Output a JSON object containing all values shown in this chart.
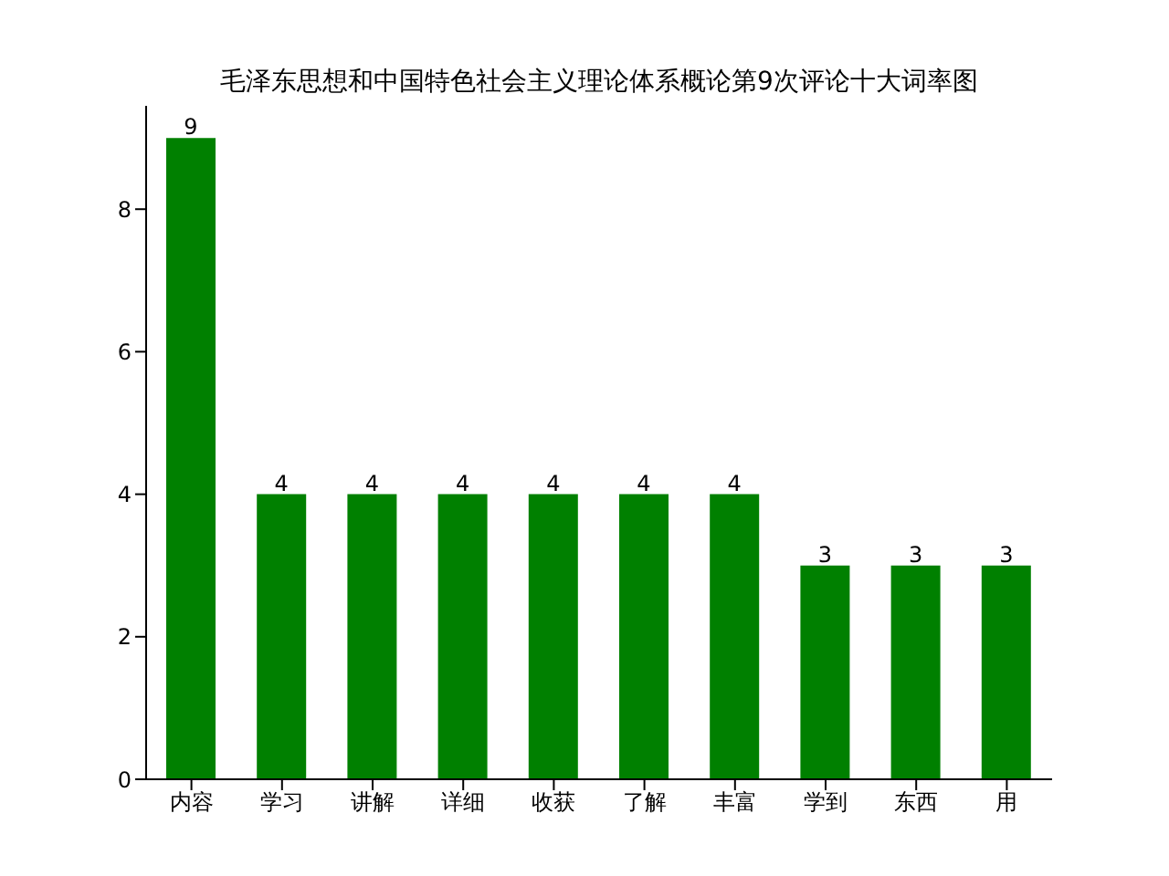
{
  "chart_data": {
    "type": "bar",
    "title": "毛泽东思想和中国特色社会主义理论体系概论第9次评论十大词率图",
    "categories": [
      "内容",
      "学习",
      "讲解",
      "详细",
      "收获",
      "了解",
      "丰富",
      "学到",
      "东西",
      "用"
    ],
    "values": [
      9,
      4,
      4,
      4,
      4,
      4,
      4,
      3,
      3,
      3
    ],
    "color": "#008000",
    "ylim": [
      0,
      9.45
    ],
    "yticks": [
      0,
      2,
      4,
      6,
      8
    ],
    "data_labels": true
  }
}
